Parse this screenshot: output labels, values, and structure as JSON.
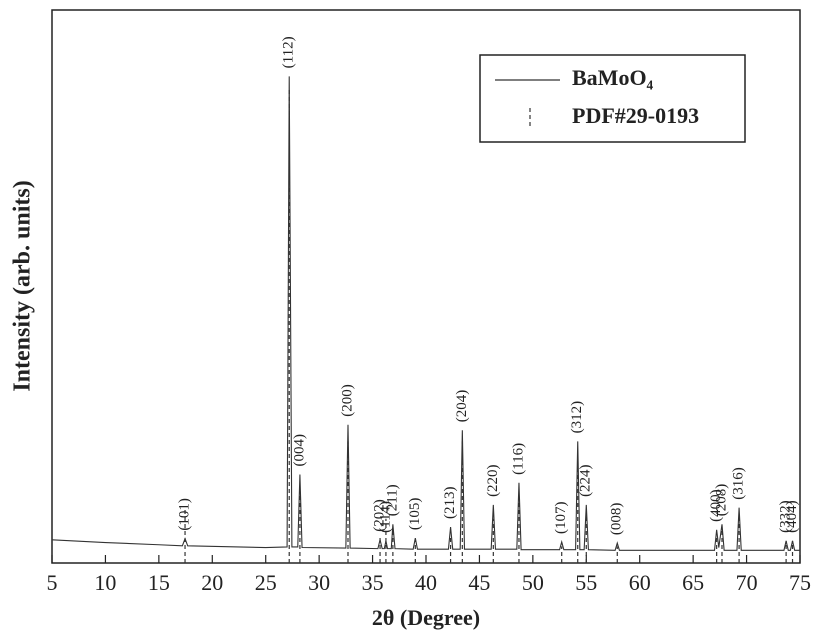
{
  "chart_data": {
    "type": "line",
    "xlabel": "2θ (Degree)",
    "ylabel": "Intensity (arb. units)",
    "xlim": [
      5,
      75
    ],
    "xticks": [
      5,
      10,
      15,
      20,
      25,
      30,
      35,
      40,
      45,
      50,
      55,
      60,
      65,
      70,
      75
    ],
    "ylim": [
      0,
      100
    ],
    "legend": "upper right",
    "series": [
      {
        "name": "BaMoO₄",
        "color": "#333333",
        "style": "solid",
        "x": [
          5,
          10,
          15,
          17.2,
          17.45,
          17.7,
          25,
          27.0,
          27.2,
          27.45,
          28.0,
          28.2,
          28.4,
          32.5,
          32.7,
          32.9,
          35.5,
          35.7,
          35.9,
          36.1,
          36.25,
          36.4,
          36.75,
          36.9,
          37.1,
          38.8,
          39.0,
          39.2,
          42.1,
          42.3,
          42.5,
          43.2,
          43.4,
          43.6,
          46.1,
          46.3,
          46.5,
          48.5,
          48.7,
          48.9,
          52.5,
          52.7,
          52.9,
          54.0,
          54.2,
          54.4,
          54.8,
          55.0,
          55.2,
          57.7,
          57.9,
          58.1,
          67.0,
          67.2,
          67.4,
          67.7,
          67.9,
          69.1,
          69.3,
          69.5,
          73.5,
          73.7,
          73.9,
          74.1,
          74.3,
          74.5,
          75
        ],
        "values": [
          4.2,
          3.7,
          3.3,
          3.1,
          4.4,
          3.1,
          2.8,
          2.9,
          88,
          2.9,
          2.9,
          16,
          2.8,
          2.7,
          25,
          2.7,
          2.6,
          4.2,
          2.6,
          2.6,
          4,
          2.6,
          2.6,
          7,
          2.6,
          2.5,
          4.5,
          2.5,
          2.5,
          6.5,
          2.5,
          2.5,
          24,
          2.5,
          2.5,
          10.5,
          2.5,
          2.5,
          14.5,
          2.4,
          2.4,
          3.8,
          2.4,
          2.4,
          22,
          2.4,
          2.4,
          10.5,
          2.4,
          2.3,
          3.6,
          2.3,
          2.3,
          6,
          2.8,
          7,
          2.3,
          2.3,
          10,
          2.3,
          2.3,
          4,
          2.3,
          2.3,
          4,
          2.3,
          2.3
        ]
      },
      {
        "name": "PDF#29-0193",
        "color": "#333333",
        "style": "dashed",
        "x": [
          17.45,
          27.2,
          28.2,
          32.7,
          35.7,
          36.25,
          36.9,
          39.0,
          42.3,
          43.4,
          46.3,
          48.7,
          52.7,
          54.2,
          55.0,
          57.9,
          67.2,
          67.7,
          69.3,
          73.7,
          74.3
        ],
        "values": [
          10,
          86,
          13,
          22,
          5,
          8,
          6,
          4,
          5,
          22,
          8,
          12,
          3,
          20,
          9,
          3,
          5,
          6,
          8,
          4,
          4
        ]
      }
    ],
    "peak_labels": [
      {
        "label": "(101)",
        "x": 17.45
      },
      {
        "label": "(112)",
        "x": 27.2
      },
      {
        "label": "(004)",
        "x": 28.2
      },
      {
        "label": "(200)",
        "x": 32.7
      },
      {
        "label": "(202)",
        "x": 35.7
      },
      {
        "label": "(114)",
        "x": 36.25
      },
      {
        "label": "(211)",
        "x": 36.9
      },
      {
        "label": "(105)",
        "x": 39.0
      },
      {
        "label": "(213)",
        "x": 42.3
      },
      {
        "label": "(204)",
        "x": 43.4
      },
      {
        "label": "(220)",
        "x": 46.3
      },
      {
        "label": "(116)",
        "x": 48.7
      },
      {
        "label": "(107)",
        "x": 52.7
      },
      {
        "label": "(312)",
        "x": 54.2
      },
      {
        "label": "(224)",
        "x": 55.0
      },
      {
        "label": "(008)",
        "x": 57.9
      },
      {
        "label": "(400)",
        "x": 67.2
      },
      {
        "label": "(208)",
        "x": 67.7
      },
      {
        "label": "(316)",
        "x": 69.3
      },
      {
        "label": "(332)",
        "x": 73.7
      },
      {
        "label": "(404)",
        "x": 74.3
      }
    ]
  }
}
